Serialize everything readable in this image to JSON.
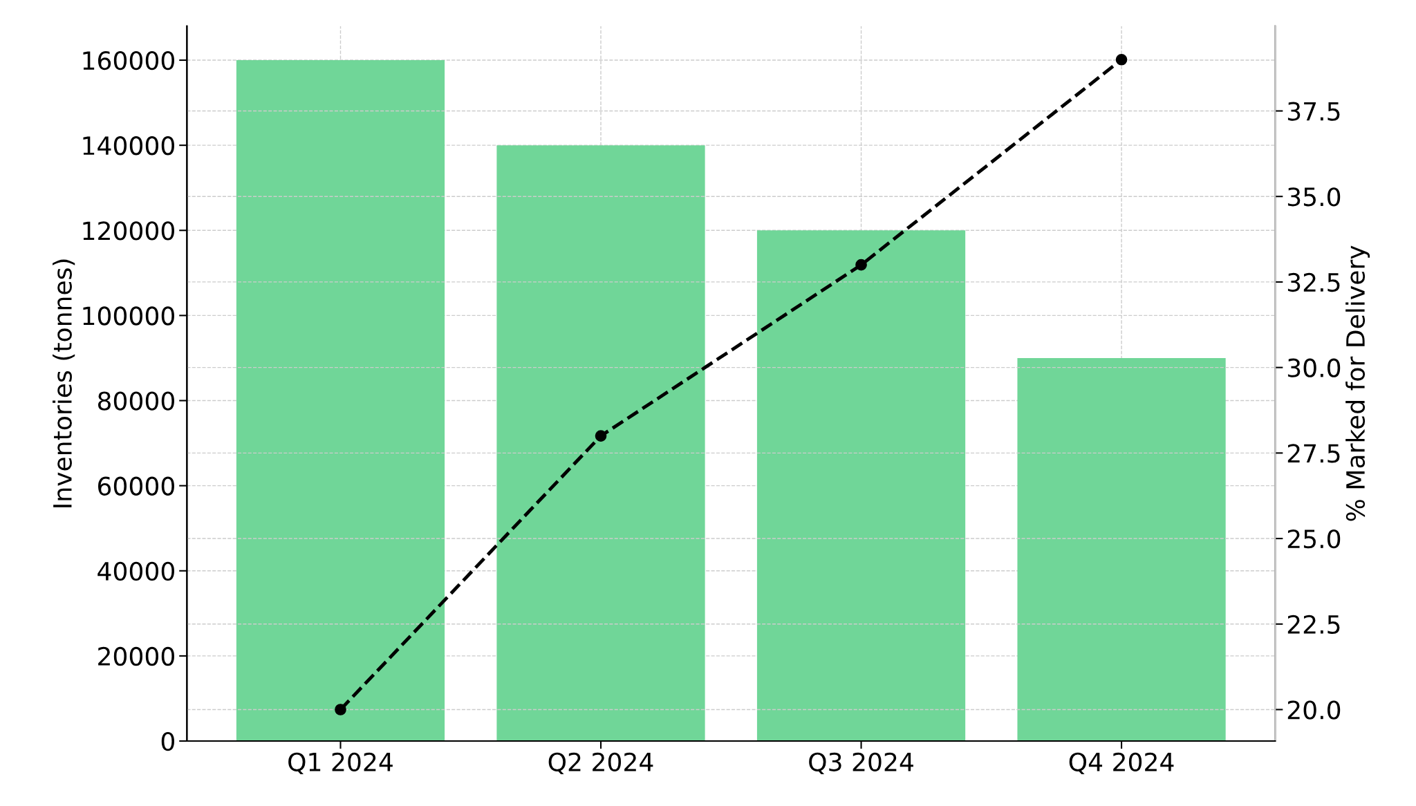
{
  "chart_data": {
    "type": "bar",
    "categories": [
      "Q1 2024",
      "Q2 2024",
      "Q3 2024",
      "Q4 2024"
    ],
    "series": [
      {
        "color": "#70d698",
        "values": [
          160000,
          140000,
          120000,
          90000
        ]
      },
      {
        "type": "line",
        "axis": "y2",
        "color": "#000000",
        "values": [
          20,
          28,
          33,
          39
        ],
        "marker": "circle",
        "line_style": "dashed"
      }
    ],
    "ylabel": "Inventories (tonnes)",
    "y2label": "% Marked for Delivery",
    "ylim": [
      0,
      168000
    ],
    "yticks": [
      0,
      20000,
      40000,
      60000,
      80000,
      100000,
      120000,
      140000,
      160000
    ],
    "y2lim": [
      19.08,
      39.98
    ],
    "y2ticks": [
      {
        "value": 20,
        "label": "20.0"
      },
      {
        "value": 22.5,
        "label": "22.5"
      },
      {
        "value": 25.0,
        "label": "25.0"
      },
      {
        "value": 27.5,
        "label": "27.5"
      },
      {
        "value": 30.0,
        "label": "30.0"
      },
      {
        "value": 32.5,
        "label": "32.5"
      },
      {
        "value": 35.0,
        "label": "35.0"
      },
      {
        "value": 37.5,
        "label": "37.5"
      }
    ],
    "grid": true,
    "legend": false
  }
}
